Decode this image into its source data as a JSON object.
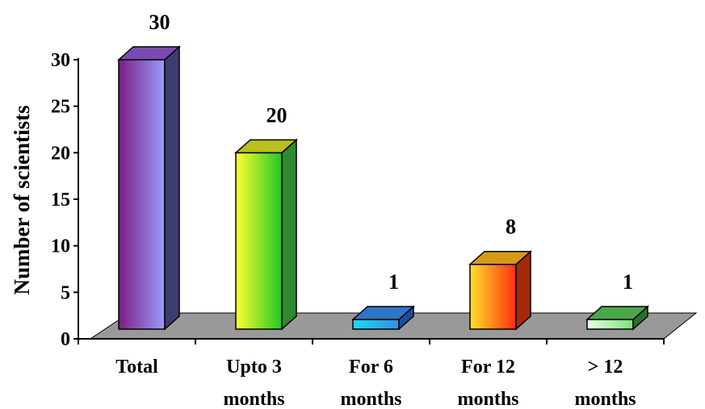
{
  "chart_data": {
    "type": "bar",
    "style": "3d",
    "ylabel": "Number of scientists",
    "ylim": [
      0,
      30
    ],
    "yticks": [
      "0",
      "5",
      "10",
      "15",
      "20",
      "25",
      "30"
    ],
    "categories": [
      [
        "Total"
      ],
      [
        "Upto 3",
        "months"
      ],
      [
        "For 6",
        "months"
      ],
      [
        "For 12",
        "months"
      ],
      [
        "> 12",
        "months"
      ]
    ],
    "values": [
      30,
      20,
      1,
      8,
      1
    ],
    "data_labels": [
      "30",
      "20",
      "1",
      "8",
      "1"
    ],
    "bar_colors": [
      {
        "left": "#7a1e82",
        "right": "#9b9bff",
        "top": "#7a4ab0",
        "side": "#3d3d70"
      },
      {
        "left": "#ffff33",
        "right": "#22c822",
        "top": "#b7c01e",
        "side": "#2e8a2e"
      },
      {
        "left": "#22d8f2",
        "right": "#2f8fe6",
        "top": "#2e76c8",
        "side": "#1c4f9a"
      },
      {
        "left": "#ffe12a",
        "right": "#ff2d0f",
        "top": "#d89a16",
        "side": "#a32a08"
      },
      {
        "left": "#e6ffe6",
        "right": "#7fe07f",
        "top": "#4aa84a",
        "side": "#2d6e2d"
      }
    ],
    "floor_color": "#999999",
    "grid": false,
    "legend": "none"
  }
}
